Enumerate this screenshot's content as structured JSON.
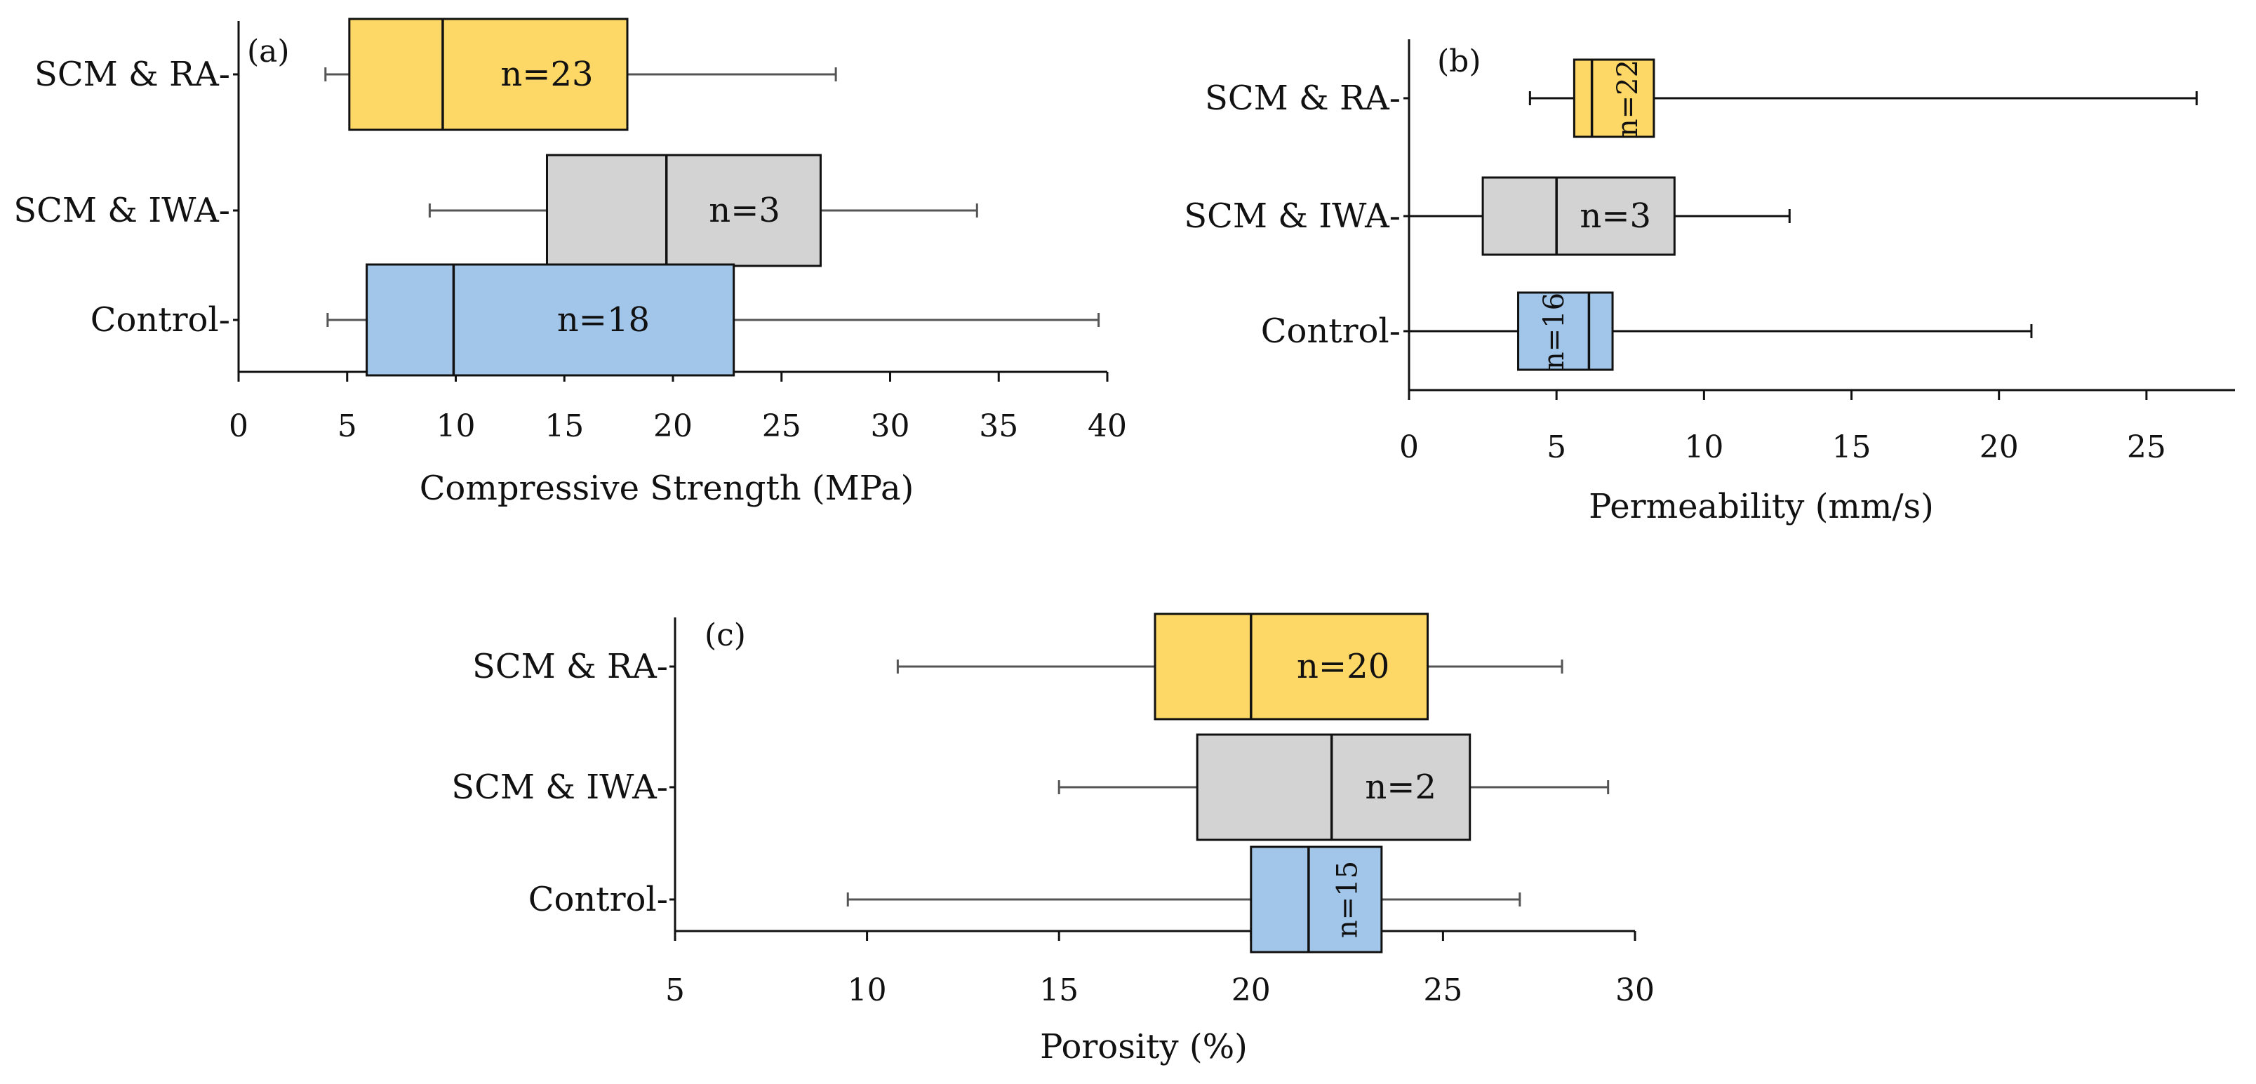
{
  "chart_data": [
    {
      "type": "boxplot",
      "panel_label": "(a)",
      "xlabel": "Compressive Strength (MPa)",
      "ylabel": "",
      "xlim": [
        0,
        40
      ],
      "xticks": [
        0,
        5,
        10,
        15,
        20,
        25,
        30,
        35,
        40
      ],
      "categories": [
        "SCM & RA-",
        "SCM & IWA-",
        "Control-"
      ],
      "series": [
        {
          "name": "SCM & RA",
          "color": "#FDD866",
          "min": 4.0,
          "q1": 5.1,
          "median": 9.4,
          "q3": 17.9,
          "max": 27.5,
          "n_label": "n=23",
          "n_orientation": "horizontal",
          "n_pos": 14.2,
          "whisker_color": "#555555"
        },
        {
          "name": "SCM & IWA",
          "color": "#D3D3D3",
          "min": 8.8,
          "q1": 14.2,
          "median": 19.7,
          "q3": 26.8,
          "max": 34.0,
          "n_label": "n=3",
          "n_orientation": "horizontal",
          "n_pos": 23.3,
          "whisker_color": "#555555"
        },
        {
          "name": "Control",
          "color": "#A1C6EA",
          "min": 4.1,
          "q1": 5.9,
          "median": 9.9,
          "q3": 22.8,
          "max": 39.6,
          "n_label": "n=18",
          "n_orientation": "horizontal",
          "n_pos": 16.8,
          "whisker_color": "#555555"
        }
      ]
    },
    {
      "type": "boxplot",
      "panel_label": "(b)",
      "xlabel": "Permeability (mm/s)",
      "ylabel": "",
      "xlim": [
        0,
        28
      ],
      "xticks": [
        0,
        5,
        10,
        15,
        20,
        25
      ],
      "categories": [
        "SCM & RA-",
        "SCM & IWA-",
        "Control-"
      ],
      "series": [
        {
          "name": "SCM & RA",
          "color": "#FDD866",
          "min": 4.1,
          "q1": 5.6,
          "median": 6.2,
          "q3": 8.3,
          "max": 26.7,
          "n_label": "n=22",
          "n_orientation": "vertical",
          "n_pos": 7.4,
          "whisker_color": "#111111"
        },
        {
          "name": "SCM & IWA",
          "color": "#D3D3D3",
          "min": 0.0,
          "q1": 2.5,
          "median": 5.0,
          "q3": 9.0,
          "max": 12.9,
          "n_label": "n=3",
          "n_orientation": "horizontal",
          "n_pos": 7.0,
          "whisker_color": "#111111"
        },
        {
          "name": "Control",
          "color": "#A1C6EA",
          "min": 0.0,
          "q1": 3.7,
          "median": 6.1,
          "q3": 6.9,
          "max": 21.1,
          "n_label": "n=16",
          "n_orientation": "vertical",
          "n_pos": 4.9,
          "whisker_color": "#111111"
        }
      ]
    },
    {
      "type": "boxplot",
      "panel_label": "(c)",
      "xlabel": "Porosity (%)",
      "ylabel": "",
      "xlim": [
        5,
        30
      ],
      "xticks": [
        5,
        10,
        15,
        20,
        25,
        30
      ],
      "categories": [
        "SCM & RA-",
        "SCM & IWA-",
        "Control-"
      ],
      "series": [
        {
          "name": "SCM & RA",
          "color": "#FDD866",
          "min": 10.8,
          "q1": 17.5,
          "median": 20.0,
          "q3": 24.6,
          "max": 28.1,
          "n_label": "n=20",
          "n_orientation": "horizontal",
          "n_pos": 22.4,
          "whisker_color": "#555555"
        },
        {
          "name": "SCM & IWA",
          "color": "#D3D3D3",
          "min": 15.0,
          "q1": 18.6,
          "median": 22.1,
          "q3": 25.7,
          "max": 29.3,
          "n_label": "n=2",
          "n_orientation": "horizontal",
          "n_pos": 23.9,
          "whisker_color": "#555555"
        },
        {
          "name": "Control",
          "color": "#A1C6EA",
          "min": 9.5,
          "q1": 20.0,
          "median": 21.5,
          "q3": 23.4,
          "max": 27.0,
          "n_label": "n=15",
          "n_orientation": "vertical",
          "n_pos": 22.5,
          "whisker_color": "#555555"
        }
      ]
    }
  ]
}
